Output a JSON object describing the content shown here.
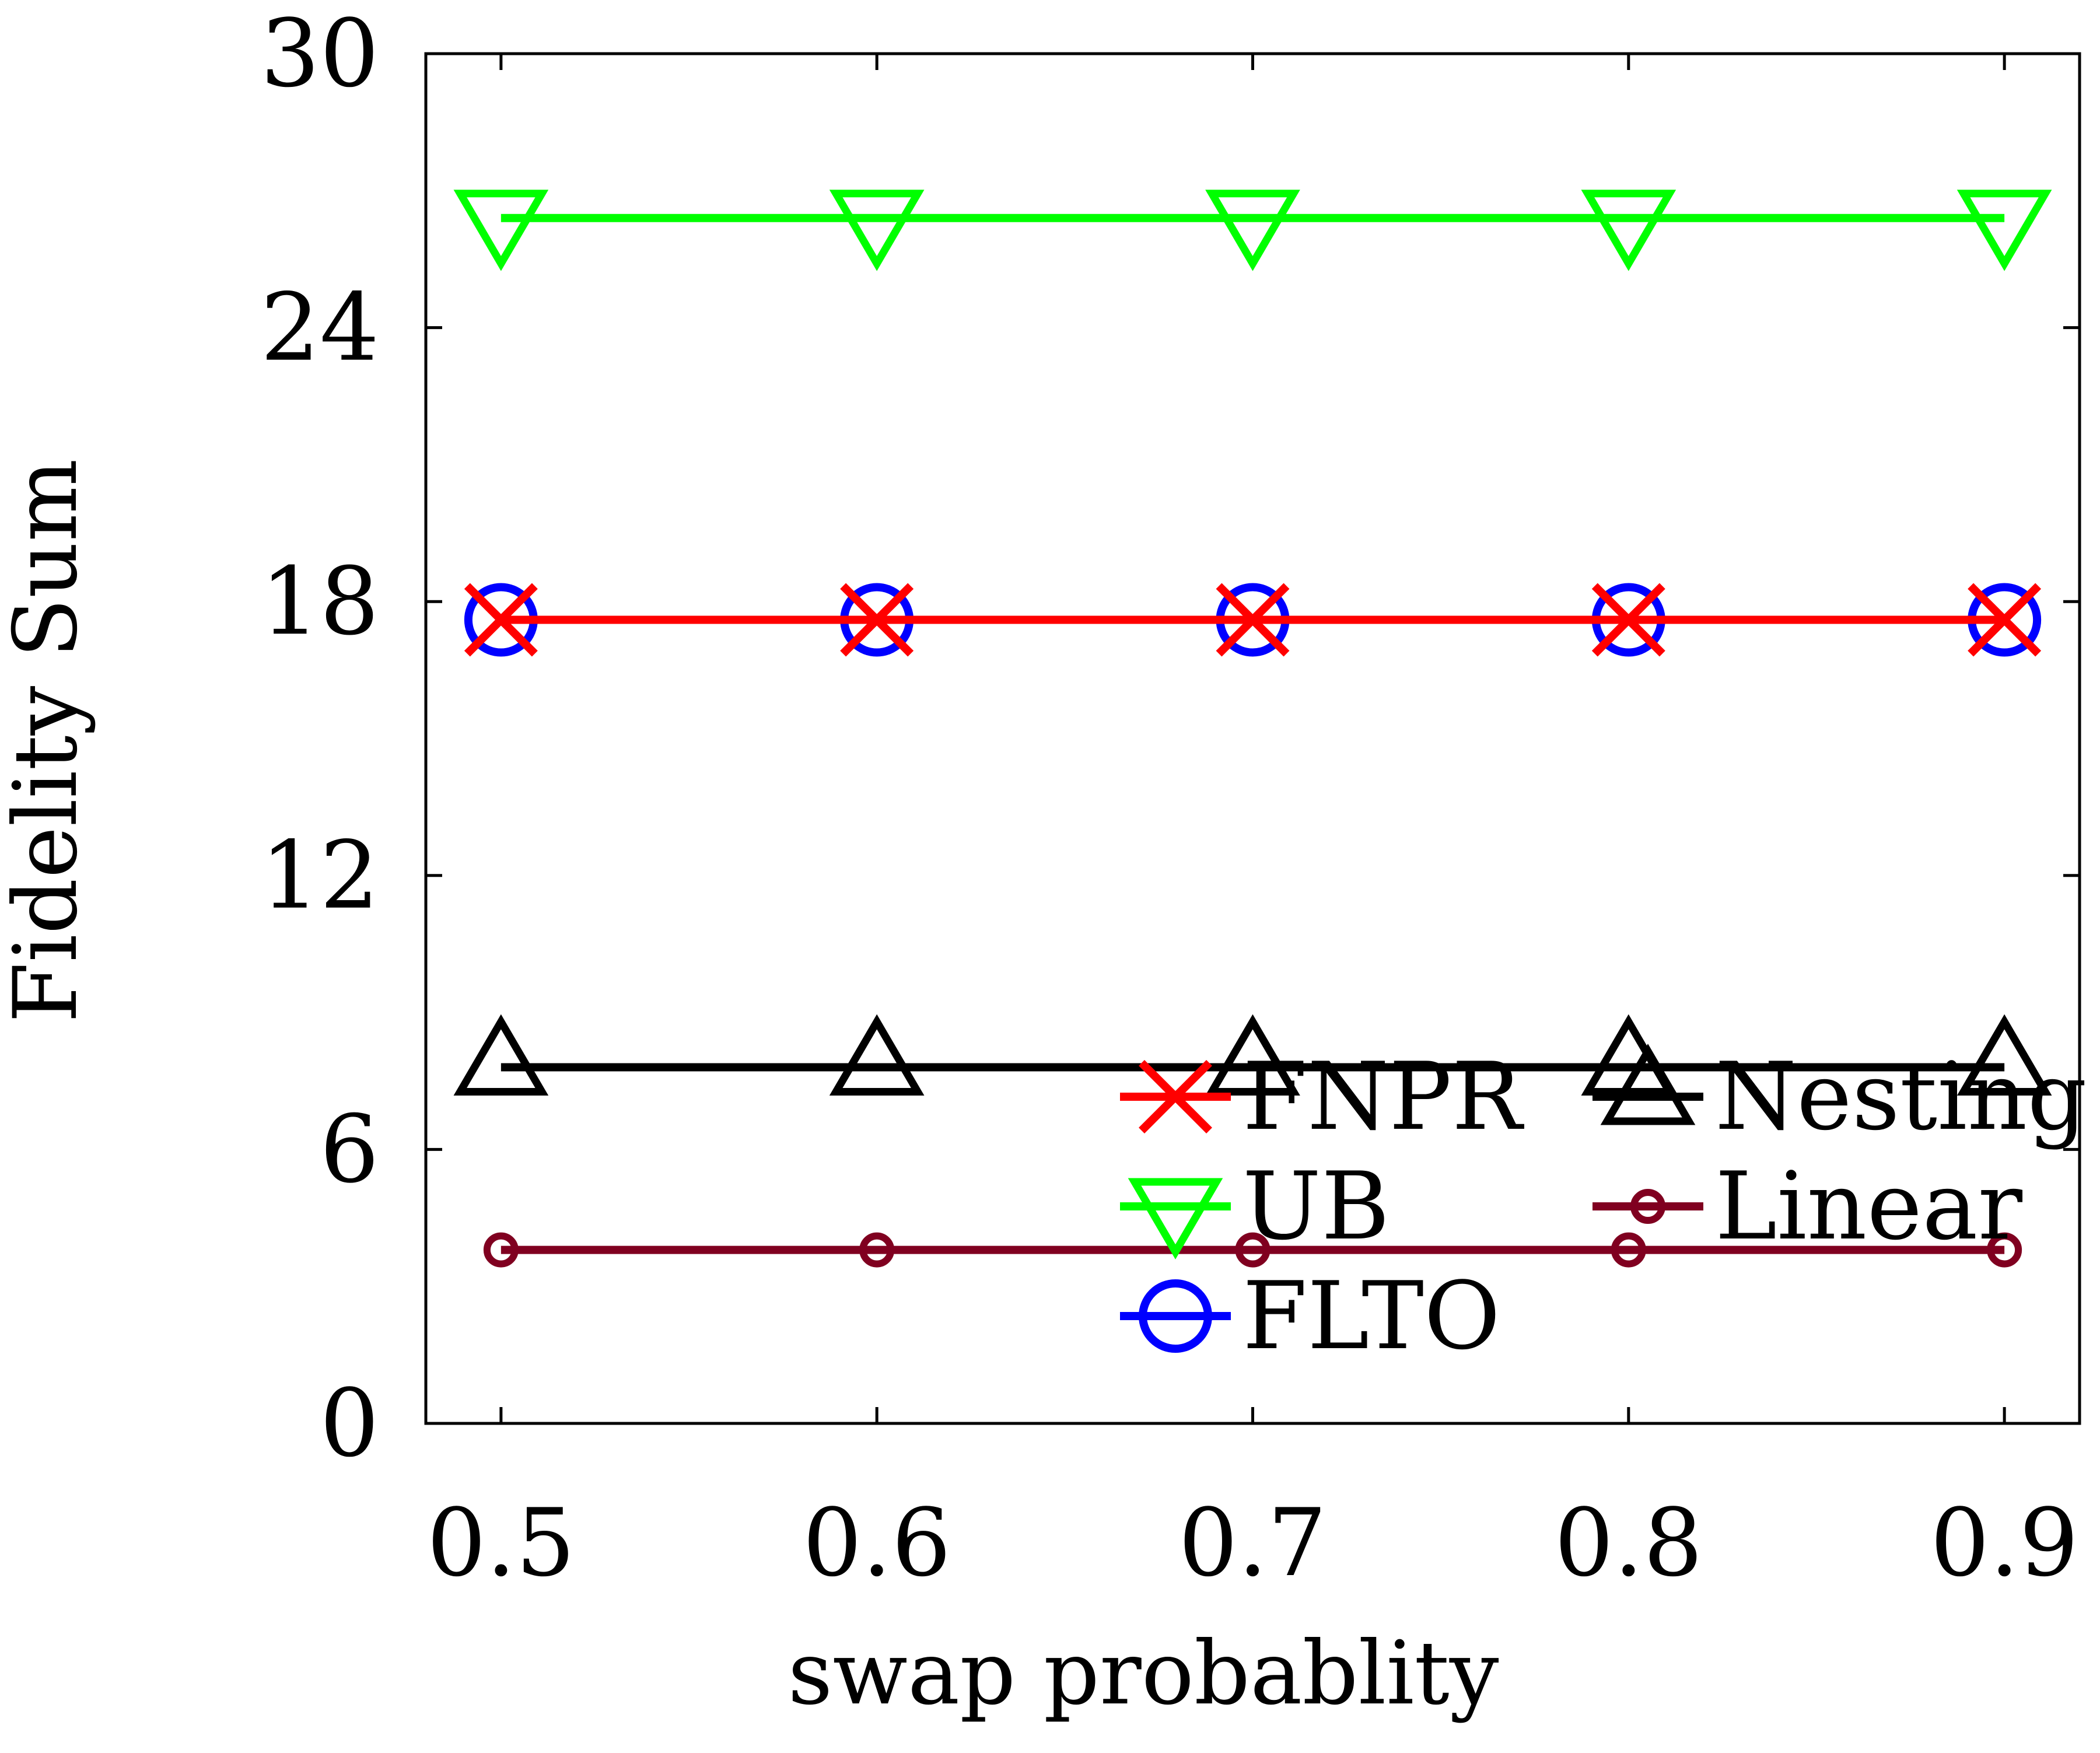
{
  "chart_data": {
    "type": "line",
    "title": "",
    "xlabel": "swap probablity",
    "ylabel": "Fidelity Sum",
    "x": [
      0.5,
      0.6,
      0.7,
      0.8,
      0.9
    ],
    "x_tick_labels": [
      "0.5",
      "0.6",
      "0.7",
      "0.8",
      "0.9"
    ],
    "xlim": [
      0.48,
      0.92
    ],
    "ylim": [
      0,
      30
    ],
    "y_ticks": [
      0,
      6,
      12,
      18,
      24,
      30
    ],
    "y_tick_labels": [
      "0",
      "6",
      "12",
      "18",
      "24",
      "30"
    ],
    "grid": false,
    "legend_position": "bottom-right",
    "series": [
      {
        "name": "FNPR",
        "values": [
          17.6,
          17.6,
          17.6,
          17.6,
          17.6
        ],
        "color": "#ff0000",
        "marker": "x"
      },
      {
        "name": "UB",
        "values": [
          26.4,
          26.4,
          26.4,
          26.4,
          26.4
        ],
        "color": "#00ff00",
        "marker": "triangle-down"
      },
      {
        "name": "FLTO",
        "values": [
          17.6,
          17.6,
          17.6,
          17.6,
          17.6
        ],
        "color": "#0000ff",
        "marker": "circle"
      },
      {
        "name": "Nesting",
        "values": [
          7.8,
          7.8,
          7.8,
          7.8,
          7.8
        ],
        "color": "#000000",
        "marker": "triangle-up"
      },
      {
        "name": "Linear",
        "values": [
          3.8,
          3.8,
          3.8,
          3.8,
          3.8
        ],
        "color": "#800020",
        "marker": "small-circle"
      }
    ],
    "legend_order": [
      "FNPR",
      "Nesting",
      "UB",
      "Linear",
      "FLTO"
    ]
  }
}
